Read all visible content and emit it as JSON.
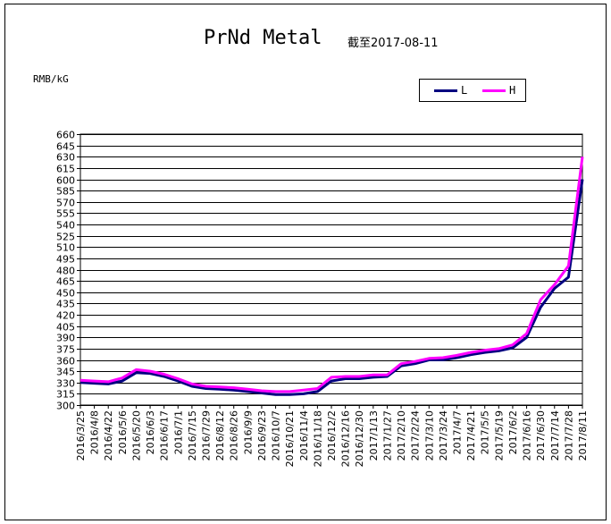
{
  "chart_data": {
    "type": "line",
    "title": "PrNd Metal",
    "subtitle": "截至2017-08-11",
    "ylabel": "RMB/kG",
    "ylim": [
      300,
      660
    ],
    "ystep": 15,
    "grid": true,
    "legend_position": "top-right",
    "x_tick_labels": [
      "2016/3/25",
      "2016/4/8",
      "2016/4/22",
      "2016/5/6",
      "2016/5/20",
      "2016/6/3",
      "2016/6/17",
      "2016/7/1",
      "2016/7/15",
      "2016/7/29",
      "2016/8/12",
      "2016/8/26",
      "2016/9/9",
      "2016/9/23",
      "2016/10/7",
      "2016/10/21",
      "2016/11/4",
      "2016/11/18",
      "2016/12/2",
      "2016/12/16",
      "2016/12/30",
      "2017/1/13",
      "2017/1/27",
      "2017/2/10",
      "2017/2/24",
      "2017/3/10",
      "2017/3/24",
      "2017/4/7",
      "2017/4/21",
      "2017/5/5",
      "2017/5/19",
      "2017/6/2",
      "2017/6/16",
      "2017/6/30",
      "2017/7/14",
      "2017/7/28",
      "2017/8/11"
    ],
    "series": [
      {
        "name": "L",
        "color": "#000080",
        "values": [
          330,
          329,
          328,
          332,
          343,
          342,
          338,
          332,
          325,
          322,
          321,
          320,
          318,
          316,
          314,
          314,
          315,
          318,
          332,
          335,
          335,
          337,
          338,
          352,
          355,
          360,
          360,
          363,
          367,
          370,
          372,
          376,
          390,
          430,
          455,
          470,
          600
        ]
      },
      {
        "name": "H",
        "color": "#ff00ff",
        "values": [
          333,
          332,
          331,
          336,
          347,
          345,
          341,
          335,
          328,
          325,
          324,
          323,
          321,
          319,
          318,
          318,
          320,
          322,
          337,
          338,
          338,
          340,
          340,
          355,
          358,
          362,
          363,
          366,
          370,
          373,
          375,
          380,
          395,
          440,
          460,
          485,
          630
        ]
      }
    ]
  }
}
